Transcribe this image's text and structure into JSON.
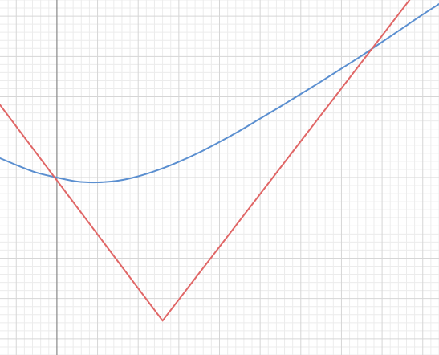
{
  "chart_data": {
    "type": "line",
    "grid": true,
    "axes_visible": [
      "y-axis"
    ],
    "xlim": [
      -1.4,
      9.4
    ],
    "ylim": [
      -4.4,
      4.4
    ],
    "series": [
      {
        "color": "#5b8fd0",
        "x": [
          -1.4,
          -1.0,
          -0.5,
          0.0,
          0.5,
          1.0,
          1.5,
          2.0,
          2.5,
          3.0,
          3.5,
          4.0,
          4.5,
          5.0,
          5.5,
          6.0,
          6.5,
          7.0,
          7.5,
          8.0,
          8.5,
          9.0,
          9.4
        ],
        "y": [
          0.48,
          0.31,
          0.12,
          0.0,
          -0.1,
          -0.12,
          -0.08,
          0.03,
          0.19,
          0.39,
          0.62,
          0.88,
          1.16,
          1.46,
          1.76,
          2.07,
          2.38,
          2.7,
          3.02,
          3.36,
          3.7,
          4.04,
          4.3
        ]
      },
      {
        "color": "#e06666",
        "x": [
          -1.4,
          2.6,
          9.4
        ],
        "y": [
          1.8,
          -3.55,
          5.35
        ]
      }
    ]
  }
}
